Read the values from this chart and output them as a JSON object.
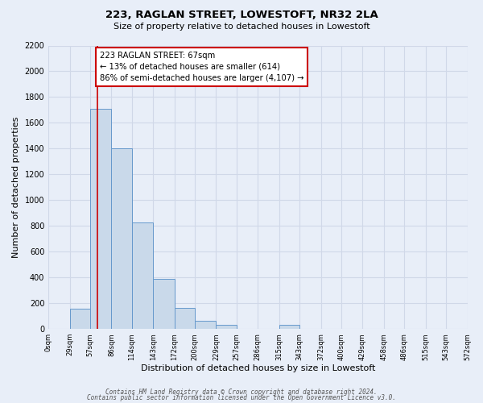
{
  "title": "223, RAGLAN STREET, LOWESTOFT, NR32 2LA",
  "subtitle": "Size of property relative to detached houses in Lowestoft",
  "xlabel": "Distribution of detached houses by size in Lowestoft",
  "ylabel": "Number of detached properties",
  "bar_edges": [
    0,
    29,
    57,
    86,
    114,
    143,
    172,
    200,
    229,
    257,
    286,
    315,
    343,
    372,
    400,
    429,
    458,
    486,
    515,
    543,
    572
  ],
  "bar_heights": [
    0,
    160,
    1710,
    1400,
    830,
    390,
    165,
    65,
    30,
    0,
    0,
    30,
    0,
    0,
    0,
    0,
    0,
    0,
    0,
    0
  ],
  "bar_color": "#c9d9ea",
  "bar_edge_color": "#6699cc",
  "vline_x": 67,
  "vline_color": "#cc0000",
  "annotation_text": "223 RAGLAN STREET: 67sqm\n← 13% of detached houses are smaller (614)\n86% of semi-detached houses are larger (4,107) →",
  "annotation_box_edge_color": "#cc0000",
  "annotation_box_face_color": "#ffffff",
  "xlim": [
    0,
    572
  ],
  "ylim": [
    0,
    2200
  ],
  "yticks": [
    0,
    200,
    400,
    600,
    800,
    1000,
    1200,
    1400,
    1600,
    1800,
    2000,
    2200
  ],
  "xtick_labels": [
    "0sqm",
    "29sqm",
    "57sqm",
    "86sqm",
    "114sqm",
    "143sqm",
    "172sqm",
    "200sqm",
    "229sqm",
    "257sqm",
    "286sqm",
    "315sqm",
    "343sqm",
    "372sqm",
    "400sqm",
    "429sqm",
    "458sqm",
    "486sqm",
    "515sqm",
    "543sqm",
    "572sqm"
  ],
  "xtick_positions": [
    0,
    29,
    57,
    86,
    114,
    143,
    172,
    200,
    229,
    257,
    286,
    315,
    343,
    372,
    400,
    429,
    458,
    486,
    515,
    543,
    572
  ],
  "grid_color": "#d0d8e8",
  "bg_color": "#e8eef8",
  "plot_bg_color": "#e8eef8",
  "footer_line1": "Contains HM Land Registry data © Crown copyright and database right 2024.",
  "footer_line2": "Contains public sector information licensed under the Open Government Licence v3.0."
}
